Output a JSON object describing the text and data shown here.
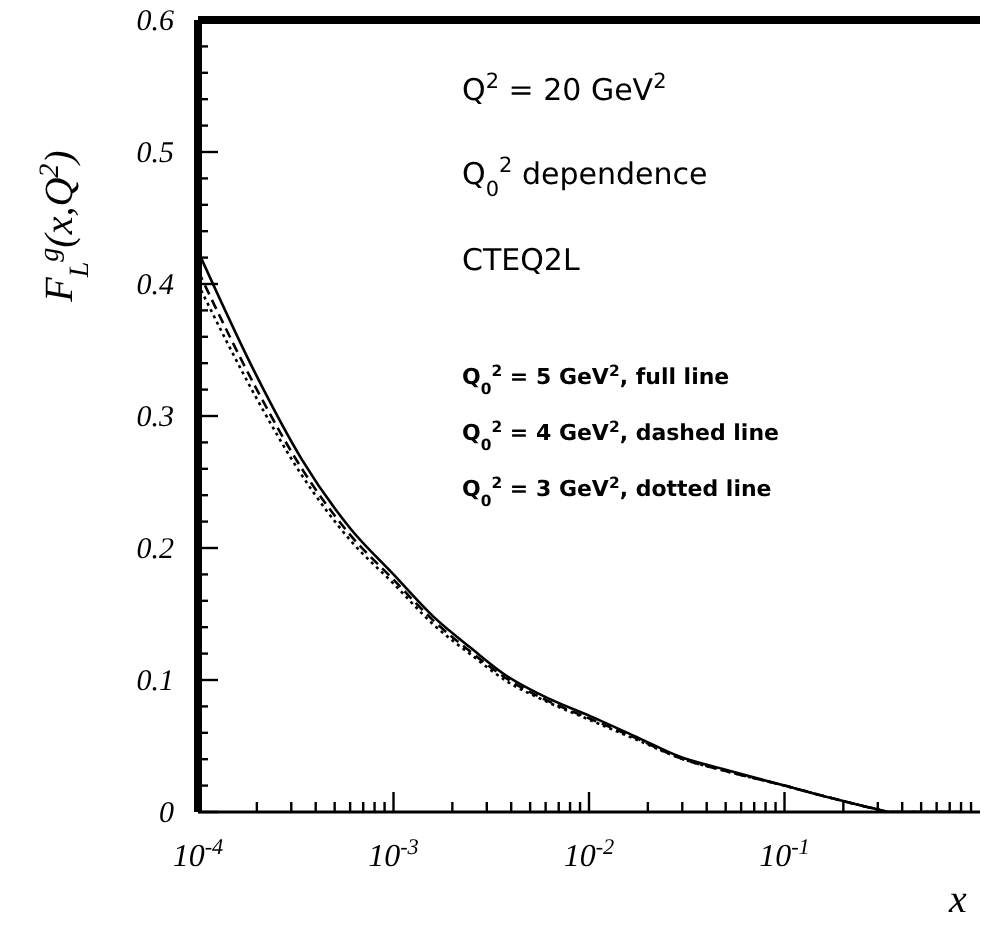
{
  "chart_data": {
    "type": "line",
    "xlabel": "x",
    "ylabel": "F$_{L}$$^{g}$(x,Q$^{2}$)",
    "log": "x",
    "xlim": [
      0.0001,
      1
    ],
    "ylim": [
      0,
      0.6
    ],
    "xticks": [
      {
        "value": 0.0001,
        "label": "10$^{-4}$"
      },
      {
        "value": 0.0002,
        "label": null
      },
      {
        "value": 0.0003,
        "label": null
      },
      {
        "value": 0.0004,
        "label": null
      },
      {
        "value": 0.0005,
        "label": null
      },
      {
        "value": 0.0006,
        "label": null
      },
      {
        "value": 0.0007,
        "label": null
      },
      {
        "value": 0.0008,
        "label": null
      },
      {
        "value": 0.0009,
        "label": null
      },
      {
        "value": 0.001,
        "label": "10$^{-3}$"
      },
      {
        "value": 0.002,
        "label": null
      },
      {
        "value": 0.003,
        "label": null
      },
      {
        "value": 0.004,
        "label": null
      },
      {
        "value": 0.005,
        "label": null
      },
      {
        "value": 0.006,
        "label": null
      },
      {
        "value": 0.007,
        "label": null
      },
      {
        "value": 0.008,
        "label": null
      },
      {
        "value": 0.009,
        "label": null
      },
      {
        "value": 0.01,
        "label": "10$^{-2}$"
      },
      {
        "value": 0.02,
        "label": null
      },
      {
        "value": 0.03,
        "label": null
      },
      {
        "value": 0.04,
        "label": null
      },
      {
        "value": 0.05,
        "label": null
      },
      {
        "value": 0.06,
        "label": null
      },
      {
        "value": 0.07,
        "label": null
      },
      {
        "value": 0.08,
        "label": null
      },
      {
        "value": 0.09,
        "label": null
      },
      {
        "value": 0.1,
        "label": "10$^{-1}$"
      },
      {
        "value": 0.2,
        "label": null
      },
      {
        "value": 0.3,
        "label": null
      },
      {
        "value": 0.4,
        "label": null
      },
      {
        "value": 0.5,
        "label": null
      },
      {
        "value": 0.6,
        "label": null
      },
      {
        "value": 0.7,
        "label": null
      },
      {
        "value": 0.8,
        "label": null
      },
      {
        "value": 0.9,
        "label": null
      }
    ],
    "yticks": [
      0,
      {
        "value": 0.02,
        "label": null
      },
      {
        "value": 0.04,
        "label": null
      },
      {
        "value": 0.06,
        "label": null
      },
      {
        "value": 0.08,
        "label": null
      },
      0.1,
      {
        "value": 0.12,
        "label": null
      },
      {
        "value": 0.14,
        "label": null
      },
      {
        "value": 0.16,
        "label": null
      },
      {
        "value": 0.18,
        "label": null
      },
      0.2,
      {
        "value": 0.22,
        "label": null
      },
      {
        "value": 0.24,
        "label": null
      },
      {
        "value": 0.26,
        "label": null
      },
      {
        "value": 0.28,
        "label": null
      },
      0.3,
      {
        "value": 0.32,
        "label": null
      },
      {
        "value": 0.34,
        "label": null
      },
      {
        "value": 0.36,
        "label": null
      },
      {
        "value": 0.38,
        "label": null
      },
      0.4,
      {
        "value": 0.42,
        "label": null
      },
      {
        "value": 0.44,
        "label": null
      },
      {
        "value": 0.46,
        "label": null
      },
      {
        "value": 0.48,
        "label": null
      },
      0.5,
      {
        "value": 0.52,
        "label": null
      },
      {
        "value": 0.54,
        "label": null
      },
      {
        "value": 0.56,
        "label": null
      },
      {
        "value": 0.58,
        "label": null
      },
      0.6
    ],
    "grid": false,
    "series": [
      {
        "color": "#000000",
        "line_style": "solid",
        "x": [
          0.0001,
          0.0002,
          0.00034,
          0.0006,
          0.001,
          0.0016,
          0.0025,
          0.0038,
          0.006,
          0.01,
          0.018,
          0.029,
          0.05,
          0.1,
          0.18,
          0.28,
          0.35,
          0.5,
          0.8
        ],
        "values": [
          0.425,
          0.33,
          0.267,
          0.215,
          0.18,
          0.148,
          0.124,
          0.103,
          0.087,
          0.073,
          0.056,
          0.042,
          0.032,
          0.02,
          0.01,
          0.003,
          0,
          0,
          0
        ]
      },
      {
        "color": "#000000",
        "line_style": "dashed",
        "x": [
          0.0001,
          0.0002,
          0.00034,
          0.0006,
          0.001,
          0.0016,
          0.0025,
          0.0038,
          0.006,
          0.01,
          0.018,
          0.029,
          0.05,
          0.1,
          0.18,
          0.28,
          0.35,
          0.5,
          0.8
        ],
        "values": [
          0.41,
          0.32,
          0.26,
          0.21,
          0.176,
          0.145,
          0.121,
          0.101,
          0.085,
          0.071,
          0.055,
          0.041,
          0.031,
          0.02,
          0.01,
          0.003,
          0,
          0,
          0
        ]
      },
      {
        "color": "#000000",
        "line_style": "dotted",
        "x": [
          0.0001,
          0.0002,
          0.00034,
          0.0006,
          0.001,
          0.0016,
          0.0025,
          0.0038,
          0.006,
          0.01,
          0.018,
          0.029,
          0.05,
          0.1,
          0.18,
          0.28,
          0.35,
          0.5,
          0.8
        ],
        "values": [
          0.4,
          0.313,
          0.255,
          0.206,
          0.173,
          0.142,
          0.119,
          0.099,
          0.084,
          0.07,
          0.054,
          0.041,
          0.031,
          0.02,
          0.01,
          0.003,
          0,
          0,
          0
        ]
      }
    ],
    "annotations": [
      "Q$^{2}$ = 20 GeV$^{2}$",
      "Q$_{0}$$^{2}$ dependence",
      "CTEQ2L",
      "Q$_{0}$$^{2}$ = 5 GeV$^{2}$, full line",
      "Q$_{0}$$^{2}$ = 4 GeV$^{2}$, dashed line",
      "Q$_{0}$$^{2}$ = 3 GeV$^{2}$, dotted line"
    ]
  }
}
